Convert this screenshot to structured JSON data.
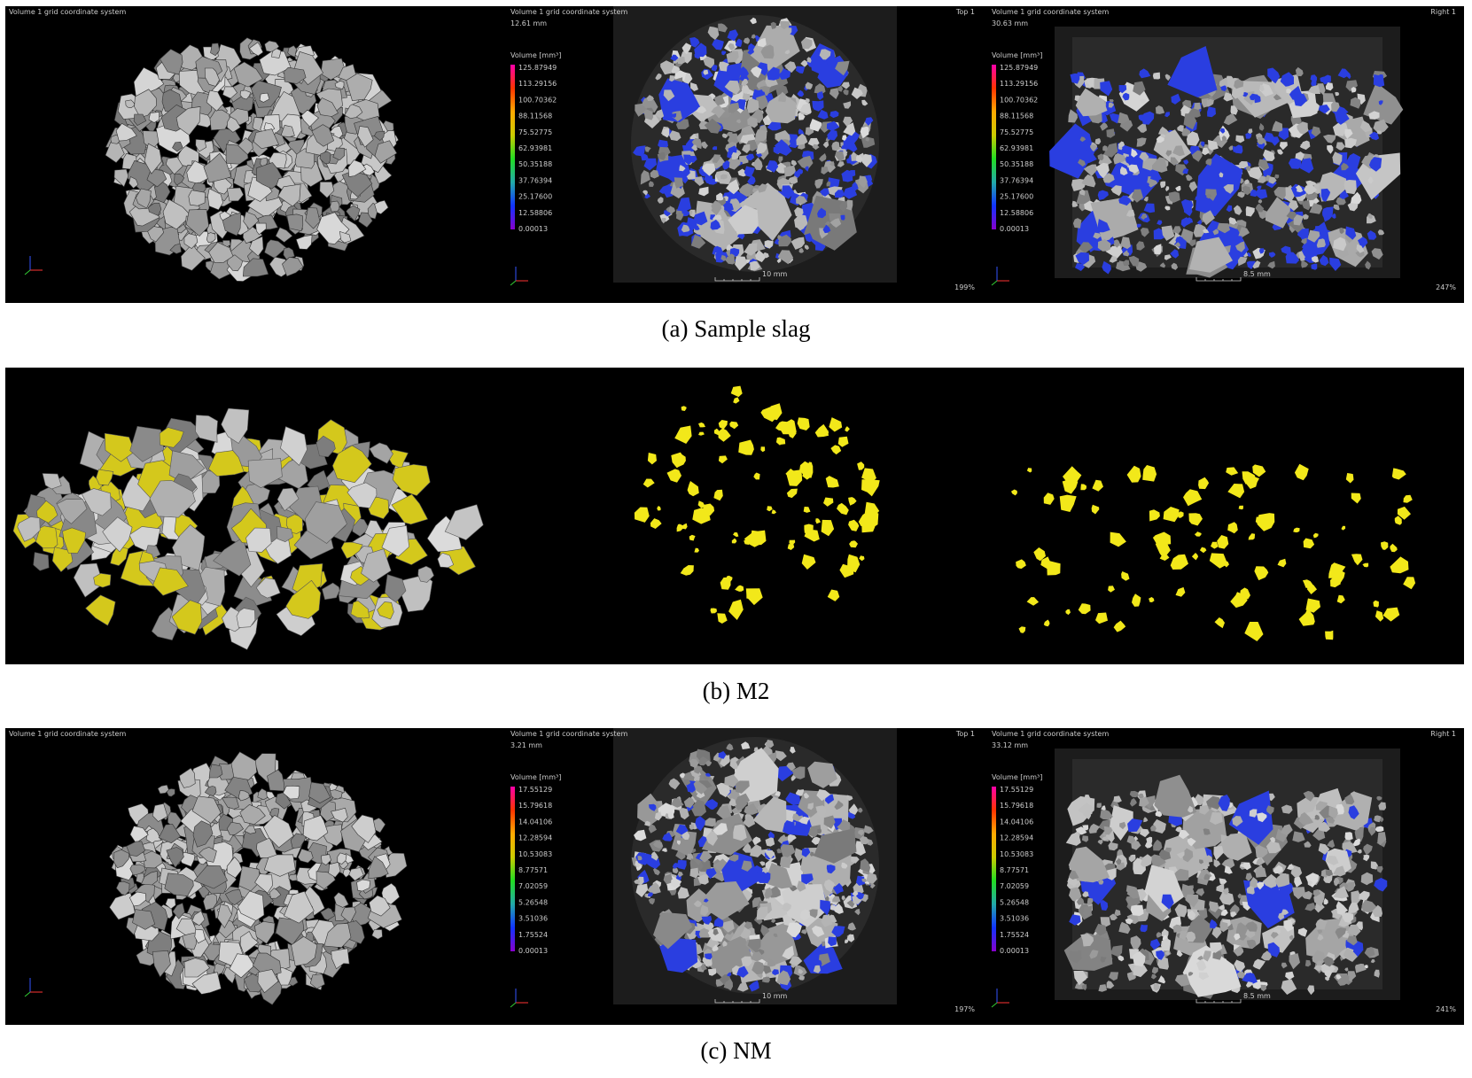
{
  "panels": [
    {
      "caption": "(a) Sample slag",
      "views": [
        {
          "label": "Volume 1 grid coordinate system"
        },
        {
          "label": "Volume 1 grid coordinate system",
          "distance": "12.61 mm",
          "view": "Top 1",
          "legend_title": "Volume [mm³]",
          "legend_values": [
            "125.87949",
            "113.29156",
            "100.70362",
            "88.11568",
            "75.52775",
            "62.93981",
            "50.35188",
            "37.76394",
            "25.17600",
            "12.58806",
            "0.00013"
          ],
          "scale_bar": "10 mm",
          "zoom": "199%"
        },
        {
          "label": "Volume 1 grid coordinate system",
          "distance": "30.63 mm",
          "view": "Right 1",
          "legend_title": "Volume [mm³]",
          "legend_values": [
            "125.87949",
            "113.29156",
            "100.70362",
            "88.11568",
            "75.52775",
            "62.93981",
            "50.35188",
            "37.76394",
            "25.17600",
            "12.58806",
            "0.00013"
          ],
          "scale_bar": "8.5 mm",
          "zoom": "247%"
        }
      ]
    },
    {
      "caption": "(b) M2"
    },
    {
      "caption": "(c) NM",
      "views": [
        {
          "label": "Volume 1 grid coordinate system"
        },
        {
          "label": "Volume 1 grid coordinate system",
          "distance": "3.21 mm",
          "view": "Top 1",
          "legend_title": "Volume [mm³]",
          "legend_values": [
            "17.55129",
            "15.79618",
            "14.04106",
            "12.28594",
            "10.53083",
            "8.77571",
            "7.02059",
            "5.26548",
            "3.51036",
            "1.75524",
            "0.00013"
          ],
          "scale_bar": "10 mm",
          "zoom": "197%"
        },
        {
          "label": "Volume 1 grid coordinate system",
          "distance": "33.12 mm",
          "view": "Right 1",
          "legend_title": "Volume [mm³]",
          "legend_values": [
            "17.55129",
            "15.79618",
            "14.04106",
            "12.28594",
            "10.53083",
            "8.77571",
            "7.02059",
            "5.26548",
            "3.51036",
            "1.75524",
            "0.00013"
          ],
          "scale_bar": "8.5 mm",
          "zoom": "241%"
        }
      ]
    }
  ]
}
